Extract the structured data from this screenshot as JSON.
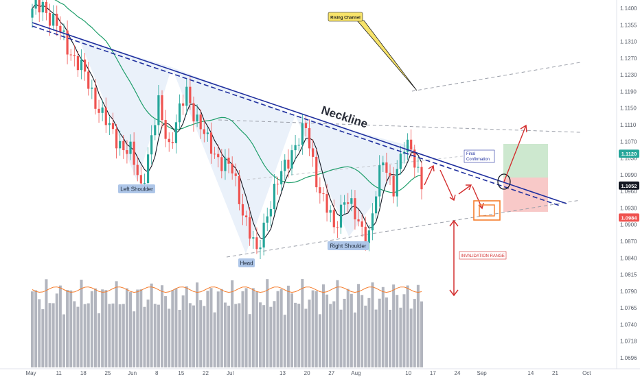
{
  "chart_data": {
    "type": "candlestick",
    "instrument_note": "",
    "x_axis": {
      "tick_labels": [
        "May",
        "11",
        "18",
        "25",
        "Jun",
        "8",
        "15",
        "22",
        "Jul",
        "13",
        "20",
        "27",
        "Aug",
        "10",
        "17",
        "24",
        "Sep",
        "14",
        "21",
        "Oct"
      ],
      "tick_day_index": [
        0,
        8,
        15,
        22,
        29,
        36,
        43,
        50,
        57,
        72,
        79,
        86,
        93,
        108,
        115,
        122,
        129,
        143,
        150,
        159
      ]
    },
    "y_axis": {
      "ylim": [
        1.0685,
        1.143
      ],
      "ticks": [
        "1.1400",
        "1.1355",
        "1.1310",
        "1.1270",
        "1.1230",
        "1.1190",
        "1.1150",
        "1.1110",
        "1.1070",
        "1.1030",
        "1.0990",
        "1.0960",
        "1.0930",
        "1.0900",
        "1.0870",
        "1.0840",
        "1.0815",
        "1.0790",
        "1.0765",
        "1.0740",
        "1.0718",
        "1.0696"
      ],
      "price_markers": [
        {
          "label": "1.1120",
          "value": 1.112,
          "color": "#26a69a"
        },
        {
          "label": "1.1052",
          "value": 1.1052,
          "color": "#131722"
        },
        {
          "label": "1.0984",
          "value": 1.0984,
          "color": "#ef5350"
        }
      ]
    },
    "candles": {
      "count": 112,
      "start_close": 1.141,
      "key_points": [
        {
          "i": 0,
          "close": 1.142
        },
        {
          "i": 3,
          "close": 1.144
        },
        {
          "i": 14,
          "close": 1.13
        },
        {
          "i": 22,
          "close": 1.117
        },
        {
          "i": 28,
          "close": 1.112
        },
        {
          "i": 31,
          "close": 1.105
        },
        {
          "i": 36,
          "close": 1.122
        },
        {
          "i": 39,
          "close": 1.114
        },
        {
          "i": 44,
          "close": 1.125
        },
        {
          "i": 50,
          "close": 1.114
        },
        {
          "i": 57,
          "close": 1.108
        },
        {
          "i": 64,
          "close": 1.09
        },
        {
          "i": 67,
          "close": 1.1
        },
        {
          "i": 74,
          "close": 1.113
        },
        {
          "i": 78,
          "close": 1.117
        },
        {
          "i": 82,
          "close": 1.104
        },
        {
          "i": 86,
          "close": 1.096
        },
        {
          "i": 89,
          "close": 1.103
        },
        {
          "i": 93,
          "close": 1.097
        },
        {
          "i": 96,
          "close": 1.095
        },
        {
          "i": 100,
          "close": 1.111
        },
        {
          "i": 103,
          "close": 1.105
        },
        {
          "i": 106,
          "close": 1.113
        },
        {
          "i": 108,
          "close": 1.114
        },
        {
          "i": 111,
          "close": 1.1052
        }
      ]
    },
    "moving_averages": [
      {
        "color": "#131722",
        "kind": "fast"
      },
      {
        "color": "#1e9e6a",
        "kind": "slow"
      }
    ],
    "annotations": {
      "neckline": "Neckline",
      "left_shoulder": "Left Shoulder",
      "head": "Head",
      "right_shoulder": "Right Shoulder",
      "rising_channel": "Rising Channel",
      "final_confirmation_line1": "Final",
      "final_confirmation_line2": "Confirmation",
      "invalidation_range": "INVALIDATION RANGE"
    },
    "colors": {
      "up": "#26a69a",
      "down": "#ef5350",
      "neckline": "#1f2f9e",
      "pattern_fill": "#dfe9f8",
      "volume": "#b2b5be",
      "volume_line": "#f57c2b",
      "target_zone": "#cde8cf",
      "stop_zone": "#f8c9c8",
      "arrow": "#d32f2f",
      "callout": "#f7e36a"
    },
    "volume": {
      "count": 112
    }
  }
}
